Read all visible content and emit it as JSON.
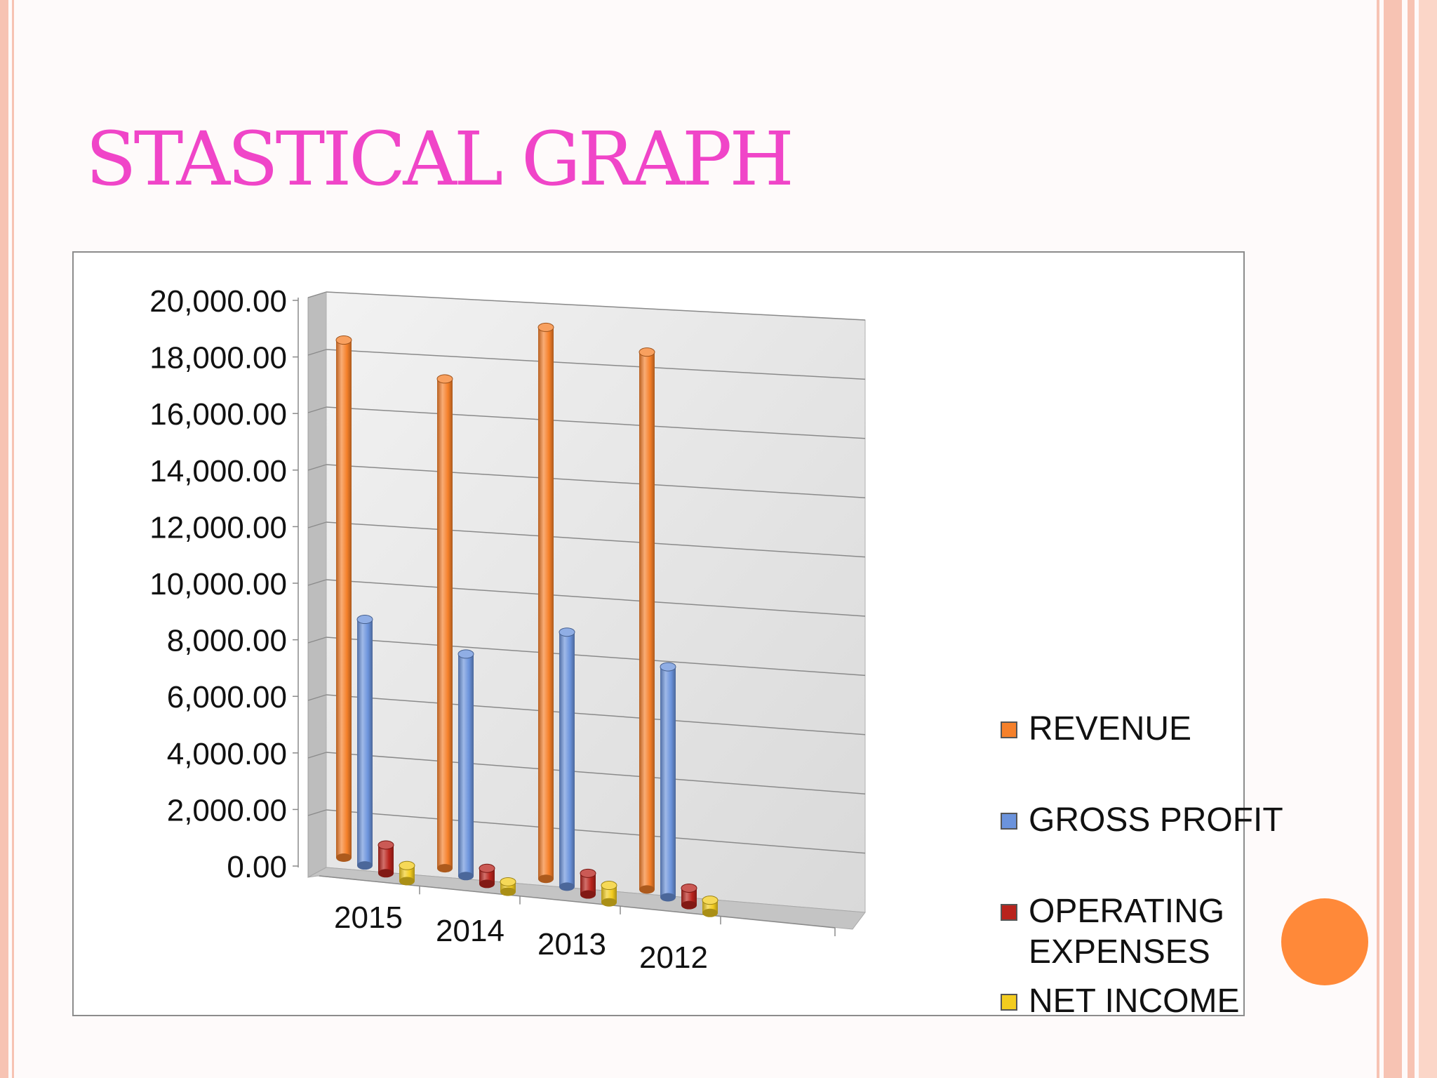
{
  "slide": {
    "title": "STASTICAL GRAPH",
    "colors": {
      "title": "#f045c8",
      "frame": "#f7c3b3",
      "accent_circle": "#ff8939"
    }
  },
  "chart_data": {
    "type": "bar",
    "categories": [
      "2015",
      "2014",
      "2013",
      "2012"
    ],
    "series": [
      {
        "name": "REVENUE",
        "color": "#f5802a",
        "values": [
          18300,
          17300,
          19500,
          19000
        ]
      },
      {
        "name": "GROSS PROFIT",
        "color": "#6b93dc",
        "values": [
          8700,
          7850,
          9000,
          8150
        ]
      },
      {
        "name": "OPERATING EXPENSES",
        "color": "#b9231c",
        "values": [
          1000,
          550,
          750,
          600
        ]
      },
      {
        "name": "NET INCOME",
        "color": "#f3cc1f",
        "values": [
          550,
          350,
          600,
          450
        ]
      }
    ],
    "ylim": [
      0,
      20000
    ],
    "y_ticks": [
      "0.00",
      "2,000.00",
      "4,000.00",
      "6,000.00",
      "8,000.00",
      "10,000.00",
      "12,000.00",
      "14,000.00",
      "16,000.00",
      "18,000.00",
      "20,000.00"
    ],
    "grid": true,
    "legend_position": "right",
    "style": "3d-cylinder"
  }
}
